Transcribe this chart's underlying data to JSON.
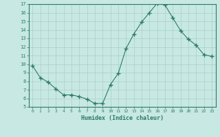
{
  "x": [
    0,
    1,
    2,
    3,
    4,
    5,
    6,
    7,
    8,
    9,
    10,
    11,
    12,
    13,
    14,
    15,
    16,
    17,
    18,
    19,
    20,
    21,
    22,
    23
  ],
  "y": [
    9.8,
    8.4,
    7.9,
    7.1,
    6.4,
    6.4,
    6.2,
    5.9,
    5.4,
    5.4,
    7.6,
    8.9,
    11.8,
    13.5,
    14.9,
    16.0,
    17.1,
    16.9,
    15.4,
    13.9,
    12.9,
    12.2,
    11.1,
    10.9
  ],
  "xlabel": "Humidex (Indice chaleur)",
  "ylim": [
    5,
    17
  ],
  "xlim": [
    -0.5,
    23.5
  ],
  "yticks": [
    5,
    6,
    7,
    8,
    9,
    10,
    11,
    12,
    13,
    14,
    15,
    16,
    17
  ],
  "xticks": [
    0,
    1,
    2,
    3,
    4,
    5,
    6,
    7,
    8,
    9,
    10,
    11,
    12,
    13,
    14,
    15,
    16,
    17,
    18,
    19,
    20,
    21,
    22,
    23
  ],
  "line_color": "#2a7a65",
  "marker_color": "#2a7a65",
  "bg_color": "#c8e8e4",
  "grid_color": "#a8cfc8",
  "xlabel_color": "#2a7a65",
  "tick_color": "#2a7a65",
  "border_color": "#2a7a65"
}
